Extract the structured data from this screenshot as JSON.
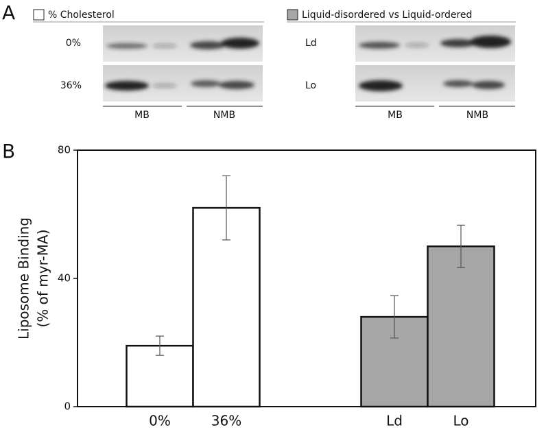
{
  "panel_labels": [
    "A",
    "B"
  ],
  "panel_a": {
    "left": {
      "legend": "% Cholesterol",
      "rows": [
        "0%",
        "36%"
      ],
      "lanes": [
        "MB",
        "NMB"
      ]
    },
    "right": {
      "legend": "Liquid-disordered vs Liquid-ordered",
      "rows": [
        "Ld",
        "Lo"
      ],
      "lanes": [
        "MB",
        "NMB"
      ]
    }
  },
  "chart_data": {
    "type": "bar",
    "ylabel": [
      "Liposome Binding",
      "(% of myr-MA)"
    ],
    "categories": [
      "0%",
      "36%",
      "Ld",
      "Lo"
    ],
    "values": [
      19,
      62,
      28,
      50
    ],
    "errors": [
      3,
      10,
      6.6,
      6.6
    ],
    "colors": [
      "#ffffff",
      "#ffffff",
      "#a6a6a6",
      "#a6a6a6"
    ],
    "ylim": [
      0,
      80
    ],
    "yticks": [
      0,
      40,
      80
    ]
  }
}
